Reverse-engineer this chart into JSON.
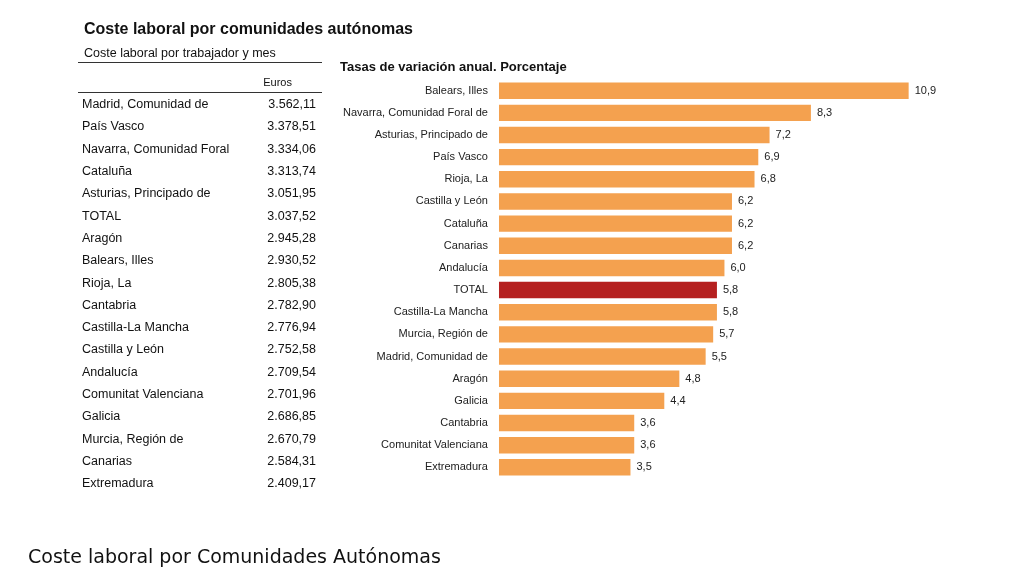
{
  "chart_data": [
    {
      "type": "other",
      "title": "Coste laboral por comunidades autónomas",
      "subtitle": "Coste laboral por trabajador y mes",
      "ylabel": "Euros",
      "categories": [
        "Madrid, Comunidad de",
        "País Vasco",
        "Navarra, Comunidad Foral",
        "Cataluña",
        "Asturias, Principado de",
        "TOTAL",
        "Aragón",
        "Balears, Illes",
        "Rioja, La",
        "Cantabria",
        "Castilla-La Mancha",
        "Castilla y León",
        "Andalucía",
        "Comunitat Valenciana",
        "Galicia",
        "Murcia, Región de",
        "Canarias",
        "Extremadura"
      ],
      "value_labels": [
        "3.562,11",
        "3.378,51",
        "3.334,06",
        "3.313,74",
        "3.051,95",
        "3.037,52",
        "2.945,28",
        "2.930,52",
        "2.805,38",
        "2.782,90",
        "2.776,94",
        "2.752,58",
        "2.709,54",
        "2.701,96",
        "2.686,85",
        "2.670,79",
        "2.584,31",
        "2.409,17"
      ],
      "annotations": [
        "Coste laboral por Comunidades Autónomas"
      ]
    },
    {
      "type": "bar",
      "orientation": "horizontal",
      "title": "Tasas de variación anual. Porcentaje",
      "categories": [
        "Balears, Illes",
        "Navarra, Comunidad Foral de",
        "Asturias, Principado de",
        "País Vasco",
        "Rioja, La",
        "Castilla y León",
        "Cataluña",
        "Canarias",
        "Andalucía",
        "TOTAL",
        "Castilla-La Mancha",
        "Murcia, Región de",
        "Madrid, Comunidad de",
        "Aragón",
        "Galicia",
        "Cantabria",
        "Comunitat Valenciana",
        "Extremadura"
      ],
      "values": [
        10.9,
        8.3,
        7.2,
        6.9,
        6.8,
        6.2,
        6.2,
        6.2,
        6.0,
        5.8,
        5.8,
        5.7,
        5.5,
        4.8,
        4.4,
        3.6,
        3.6,
        3.5
      ],
      "colors": [
        "#f4a14f",
        "#f4a14f",
        "#f4a14f",
        "#f4a14f",
        "#f4a14f",
        "#f4a14f",
        "#f4a14f",
        "#f4a14f",
        "#f4a14f",
        "#b5201f",
        "#f4a14f",
        "#f4a14f",
        "#f4a14f",
        "#f4a14f",
        "#f4a14f",
        "#f4a14f",
        "#f4a14f",
        "#f4a14f"
      ],
      "value_labels": [
        "10,9",
        "8,3",
        "7,2",
        "6,9",
        "6,8",
        "6,2",
        "6,2",
        "6,2",
        "6,0",
        "5,8",
        "5,8",
        "5,7",
        "5,5",
        "4,8",
        "4,4",
        "3,6",
        "3,6",
        "3,5"
      ]
    }
  ]
}
